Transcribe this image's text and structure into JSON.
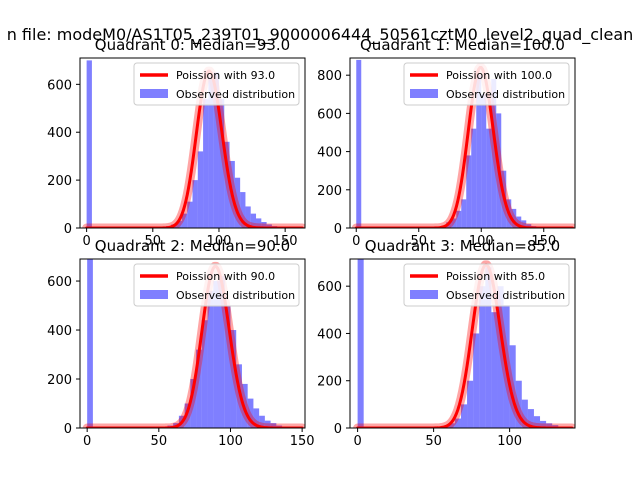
{
  "figure_title": "n file: modeM0/AS1T05_239T01_9000006444_50561cztM0_level2_quad_clean",
  "colors": {
    "poisson": "#ff0000",
    "hist": "#0000ff",
    "axis": "#000000",
    "legend_border": "#cccccc"
  },
  "chart_data": [
    {
      "type": "bar",
      "title": "Quadrant 0: Median=93.0",
      "xlim": [
        -5,
        165
      ],
      "ylim": [
        0,
        710
      ],
      "xticks": [
        0,
        50,
        100,
        150
      ],
      "yticks": [
        0,
        200,
        400,
        600
      ],
      "legend": [
        "Poission with 93.0",
        "Observed distribution"
      ],
      "legend_position": "top-right",
      "median": 93,
      "poisson_peak": 655,
      "hist_peak": 650,
      "bin_width": 4,
      "bins": [
        [
          0,
          700
        ],
        [
          4,
          0
        ],
        [
          8,
          0
        ],
        [
          12,
          0
        ],
        [
          16,
          0
        ],
        [
          20,
          0
        ],
        [
          24,
          0
        ],
        [
          28,
          0
        ],
        [
          32,
          0
        ],
        [
          36,
          0
        ],
        [
          40,
          0
        ],
        [
          44,
          0
        ],
        [
          48,
          2
        ],
        [
          52,
          3
        ],
        [
          56,
          5
        ],
        [
          60,
          8
        ],
        [
          64,
          15
        ],
        [
          68,
          30
        ],
        [
          72,
          60
        ],
        [
          76,
          110
        ],
        [
          80,
          200
        ],
        [
          84,
          320
        ],
        [
          88,
          540
        ],
        [
          92,
          630
        ],
        [
          96,
          650
        ],
        [
          100,
          540
        ],
        [
          104,
          360
        ],
        [
          108,
          280
        ],
        [
          112,
          210
        ],
        [
          116,
          150
        ],
        [
          120,
          90
        ],
        [
          124,
          60
        ],
        [
          128,
          40
        ],
        [
          132,
          25
        ],
        [
          136,
          15
        ],
        [
          140,
          8
        ],
        [
          144,
          5
        ],
        [
          148,
          3
        ],
        [
          152,
          2
        ],
        [
          156,
          1
        ]
      ]
    },
    {
      "type": "bar",
      "title": "Quadrant 1: Median=100.0",
      "xlim": [
        -5,
        175
      ],
      "ylim": [
        0,
        890
      ],
      "xticks": [
        0,
        50,
        100,
        150
      ],
      "yticks": [
        0,
        200,
        400,
        600,
        800
      ],
      "legend": [
        "Poission with 100.0",
        "Observed distribution"
      ],
      "legend_position": "top-right",
      "median": 100,
      "poisson_peak": 840,
      "hist_peak": 800,
      "bin_width": 4,
      "bins": [
        [
          0,
          880
        ],
        [
          4,
          0
        ],
        [
          8,
          0
        ],
        [
          12,
          0
        ],
        [
          16,
          0
        ],
        [
          20,
          0
        ],
        [
          24,
          0
        ],
        [
          28,
          0
        ],
        [
          32,
          0
        ],
        [
          36,
          0
        ],
        [
          40,
          0
        ],
        [
          44,
          0
        ],
        [
          48,
          0
        ],
        [
          52,
          0
        ],
        [
          56,
          2
        ],
        [
          60,
          4
        ],
        [
          64,
          6
        ],
        [
          68,
          12
        ],
        [
          72,
          30
        ],
        [
          76,
          50
        ],
        [
          80,
          90
        ],
        [
          84,
          150
        ],
        [
          88,
          380
        ],
        [
          92,
          520
        ],
        [
          96,
          800
        ],
        [
          100,
          700
        ],
        [
          104,
          520
        ],
        [
          108,
          780
        ],
        [
          112,
          600
        ],
        [
          116,
          300
        ],
        [
          120,
          150
        ],
        [
          124,
          100
        ],
        [
          128,
          60
        ],
        [
          132,
          40
        ],
        [
          136,
          20
        ],
        [
          140,
          10
        ],
        [
          144,
          6
        ],
        [
          148,
          4
        ],
        [
          152,
          3
        ],
        [
          156,
          2
        ],
        [
          160,
          1
        ],
        [
          164,
          1
        ]
      ]
    },
    {
      "type": "bar",
      "title": "Quadrant 2: Median=90.0",
      "xlim": [
        -5,
        152
      ],
      "ylim": [
        0,
        690
      ],
      "xticks": [
        0,
        50,
        100,
        150
      ],
      "yticks": [
        0,
        200,
        400,
        600
      ],
      "legend": [
        "Poission with 90.0",
        "Observed distribution"
      ],
      "legend_position": "top-right",
      "median": 90,
      "poisson_peak": 660,
      "hist_peak": 620,
      "bin_width": 4,
      "bins": [
        [
          0,
          690
        ],
        [
          4,
          0
        ],
        [
          8,
          0
        ],
        [
          12,
          0
        ],
        [
          16,
          0
        ],
        [
          20,
          0
        ],
        [
          24,
          0
        ],
        [
          28,
          0
        ],
        [
          32,
          0
        ],
        [
          36,
          0
        ],
        [
          40,
          0
        ],
        [
          44,
          0
        ],
        [
          48,
          2
        ],
        [
          52,
          5
        ],
        [
          56,
          10
        ],
        [
          60,
          20
        ],
        [
          64,
          50
        ],
        [
          68,
          100
        ],
        [
          72,
          200
        ],
        [
          76,
          320
        ],
        [
          80,
          440
        ],
        [
          84,
          560
        ],
        [
          88,
          600
        ],
        [
          92,
          620
        ],
        [
          96,
          500
        ],
        [
          100,
          400
        ],
        [
          104,
          260
        ],
        [
          108,
          180
        ],
        [
          112,
          120
        ],
        [
          116,
          80
        ],
        [
          120,
          50
        ],
        [
          124,
          30
        ],
        [
          128,
          20
        ],
        [
          132,
          10
        ],
        [
          136,
          5
        ],
        [
          140,
          3
        ],
        [
          144,
          2
        ]
      ]
    },
    {
      "type": "bar",
      "title": "Quadrant 3: Median=85.0",
      "xlim": [
        -5,
        143
      ],
      "ylim": [
        0,
        715
      ],
      "xticks": [
        0,
        50,
        100
      ],
      "yticks": [
        0,
        200,
        400,
        600
      ],
      "legend": [
        "Poission with 85.0",
        "Observed distribution"
      ],
      "legend_position": "top-right",
      "median": 85,
      "poisson_peak": 690,
      "hist_peak": 680,
      "bin_width": 4,
      "bins": [
        [
          0,
          715
        ],
        [
          4,
          0
        ],
        [
          8,
          0
        ],
        [
          12,
          0
        ],
        [
          16,
          0
        ],
        [
          20,
          0
        ],
        [
          24,
          0
        ],
        [
          28,
          0
        ],
        [
          32,
          0
        ],
        [
          36,
          0
        ],
        [
          40,
          0
        ],
        [
          44,
          0
        ],
        [
          48,
          2
        ],
        [
          52,
          4
        ],
        [
          56,
          10
        ],
        [
          60,
          20
        ],
        [
          64,
          40
        ],
        [
          68,
          100
        ],
        [
          72,
          200
        ],
        [
          76,
          400
        ],
        [
          80,
          600
        ],
        [
          84,
          680
        ],
        [
          88,
          490
        ],
        [
          92,
          600
        ],
        [
          96,
          520
        ],
        [
          100,
          350
        ],
        [
          104,
          200
        ],
        [
          108,
          120
        ],
        [
          112,
          80
        ],
        [
          116,
          50
        ],
        [
          120,
          30
        ],
        [
          124,
          20
        ],
        [
          128,
          12
        ],
        [
          132,
          6
        ],
        [
          136,
          3
        ]
      ]
    }
  ]
}
